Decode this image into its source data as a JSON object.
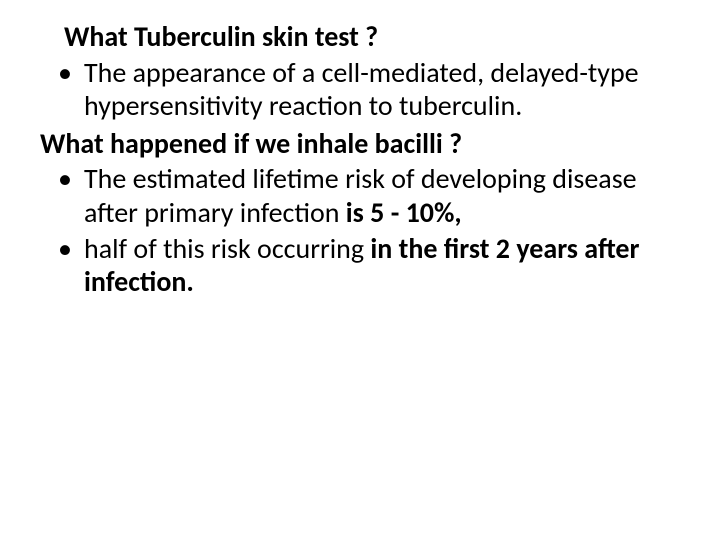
{
  "slide": {
    "background_color": "#ffffff",
    "text_color": "#000000",
    "font_family": "Calibri",
    "font_size_pt": 28,
    "heading1": "What  Tuberculin skin test  ?",
    "bullet1": "The appearance of a cell-mediated, delayed-type hypersensitivity reaction to tuberculin.",
    "heading2": "What happened if we inhale bacilli ?",
    "bullet2_pre": "The estimated lifetime risk of developing disease after primary infection ",
    "bullet2_bold": "is 5 - 10%,",
    "bullet3_pre": " half of this risk occurring ",
    "bullet3_bold": "in the first 2 years after infection."
  }
}
